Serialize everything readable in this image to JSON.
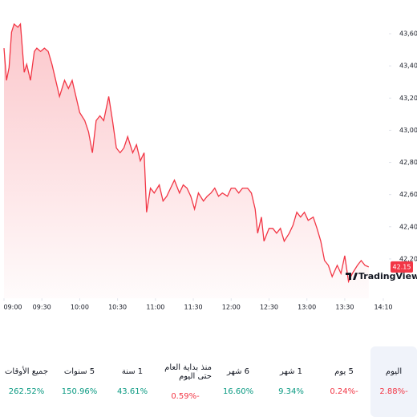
{
  "chart_data": {
    "type": "area",
    "x": [
      540,
      542,
      544,
      546,
      548,
      551,
      553,
      556,
      558,
      561,
      564,
      566,
      569,
      572,
      575,
      578,
      581,
      584,
      588,
      591,
      594,
      597,
      600,
      604,
      607,
      610,
      613,
      616,
      619,
      623,
      626,
      629,
      632,
      635,
      638,
      642,
      645,
      648,
      651,
      653,
      656,
      659,
      663,
      666,
      669,
      672,
      675,
      679,
      682,
      685,
      688,
      691,
      694,
      698,
      701,
      704,
      707,
      710,
      713,
      717,
      720,
      723,
      726,
      729,
      733,
      736,
      739,
      741,
      744,
      746,
      750,
      753,
      756,
      759,
      762,
      766,
      769,
      772,
      775,
      778,
      781,
      785,
      788,
      791,
      794,
      797,
      800,
      804,
      807,
      810,
      813,
      816,
      820,
      823,
      826,
      829
    ],
    "values": [
      43.51,
      43.31,
      43.39,
      43.61,
      43.66,
      43.64,
      43.66,
      43.36,
      43.41,
      43.31,
      43.49,
      43.51,
      43.49,
      43.51,
      43.49,
      43.41,
      43.31,
      43.21,
      43.31,
      43.26,
      43.31,
      43.21,
      43.11,
      43.06,
      42.99,
      42.86,
      43.06,
      43.09,
      43.06,
      43.21,
      43.06,
      42.89,
      42.86,
      42.89,
      42.96,
      42.86,
      42.91,
      42.81,
      42.86,
      42.49,
      42.64,
      42.61,
      42.66,
      42.56,
      42.59,
      42.64,
      42.69,
      42.61,
      42.66,
      42.64,
      42.59,
      42.51,
      42.61,
      42.56,
      42.59,
      42.61,
      42.64,
      42.59,
      42.61,
      42.59,
      42.64,
      42.64,
      42.61,
      42.64,
      42.64,
      42.61,
      42.51,
      42.36,
      42.46,
      42.31,
      42.39,
      42.39,
      42.36,
      42.39,
      42.31,
      42.36,
      42.41,
      42.49,
      42.46,
      42.49,
      42.44,
      42.46,
      42.39,
      42.31,
      42.19,
      42.16,
      42.09,
      42.16,
      42.11,
      42.22,
      42.06,
      42.11,
      42.16,
      42.19,
      42.16,
      42.15
    ],
    "color": "#f23645",
    "xlim": [
      540,
      845
    ],
    "xticks": [
      {
        "value": 540,
        "label": "09:00"
      },
      {
        "value": 570,
        "label": "09:30"
      },
      {
        "value": 600,
        "label": "10:00"
      },
      {
        "value": 630,
        "label": "10:30"
      },
      {
        "value": 660,
        "label": "11:00"
      },
      {
        "value": 690,
        "label": "11:30"
      },
      {
        "value": 720,
        "label": "12:00"
      },
      {
        "value": 750,
        "label": "12:30"
      },
      {
        "value": 780,
        "label": "13:00"
      },
      {
        "value": 810,
        "label": "13:30"
      },
      {
        "value": 850,
        "label": "14:10"
      }
    ],
    "ylim": [
      42.04,
      43.71
    ],
    "yticks": [
      {
        "value": 42.2,
        "label": "42,20"
      },
      {
        "value": 42.4,
        "label": "42,40"
      },
      {
        "value": 42.6,
        "label": "42,60"
      },
      {
        "value": 42.8,
        "label": "42,80"
      },
      {
        "value": 43.0,
        "label": "43,00"
      },
      {
        "value": 43.2,
        "label": "43,20"
      },
      {
        "value": 43.4,
        "label": "43,40"
      },
      {
        "value": 43.6,
        "label": "43,60"
      }
    ],
    "last_price": {
      "value": 42.15,
      "label": "42.15"
    },
    "logo": "TradingView",
    "grid": false
  },
  "periods": [
    {
      "label": "اليوم",
      "change": "-2.88%",
      "trend": "down",
      "selected": true
    },
    {
      "label": "5 يوم",
      "change": "-0.24%",
      "trend": "down"
    },
    {
      "label": "1 شهر",
      "change": "9.34%",
      "trend": "up"
    },
    {
      "label": "6 شهر",
      "change": "16.60%",
      "trend": "up"
    },
    {
      "label": "منذ بداية العام حتى اليوم",
      "change": "-0.59%",
      "trend": "down"
    },
    {
      "label": "1 سنة",
      "change": "43.61%",
      "trend": "up"
    },
    {
      "label": "5 سنوات",
      "change": "150.96%",
      "trend": "up"
    },
    {
      "label": "جميع الأوقات",
      "change": "262.52%",
      "trend": "up"
    }
  ]
}
